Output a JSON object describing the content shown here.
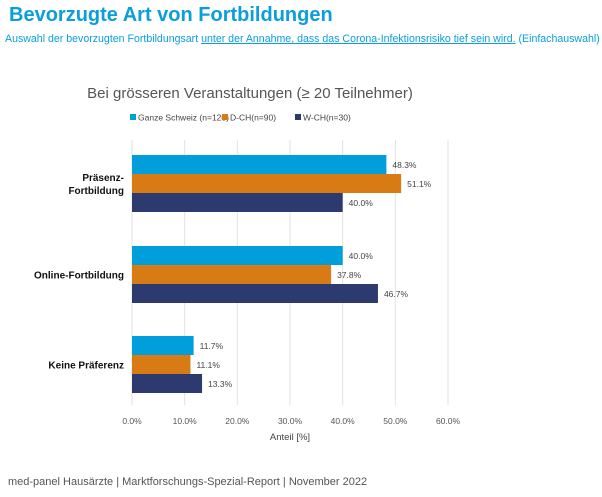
{
  "header": {
    "title": "Bevorzugte Art von Fortbildungen",
    "subtitle_part1": "Auswahl der bevorzugten Fortbildungsart ",
    "subtitle_underlined": "unter der Annahme, dass das Corona-Infektionsrisiko tief sein wird.",
    "subtitle_part2": " (Einfachauswahl)"
  },
  "footer": "med-panel Hausärzte | Marktforschungs-Spezial-Report | November 2022",
  "chart_data": {
    "type": "bar",
    "orientation": "horizontal",
    "title": "Bei grösseren Veranstaltungen (≥ 20 Teilnehmer)",
    "categories": [
      [
        "Präsenz-",
        "Fortbildung"
      ],
      [
        "Online-Fortbildung"
      ],
      [
        "Keine Präferenz"
      ]
    ],
    "series": [
      {
        "name": "Ganze Schweiz (n=120)",
        "color": "#009fdb",
        "values": [
          48.3,
          40.0,
          11.7
        ],
        "labels": [
          "48.3%",
          "40.0%",
          "11.7%"
        ]
      },
      {
        "name": "D-CH(n=90)",
        "color": "#d97b14",
        "values": [
          51.1,
          37.8,
          11.1
        ],
        "labels": [
          "51.1%",
          "37.8%",
          "11.1%"
        ]
      },
      {
        "name": "W-CH(n=30)",
        "color": "#2d3a70",
        "values": [
          40.0,
          46.7,
          13.3
        ],
        "labels": [
          "40.0%",
          "46.7%",
          "13.3%"
        ]
      }
    ],
    "xlabel": "Anteil [%]",
    "xlim": [
      0,
      60
    ],
    "xticks": [
      "0.0%",
      "10.0%",
      "20.0%",
      "30.0%",
      "40.0%",
      "50.0%",
      "60.0%"
    ],
    "grid": true,
    "legend": "top"
  }
}
